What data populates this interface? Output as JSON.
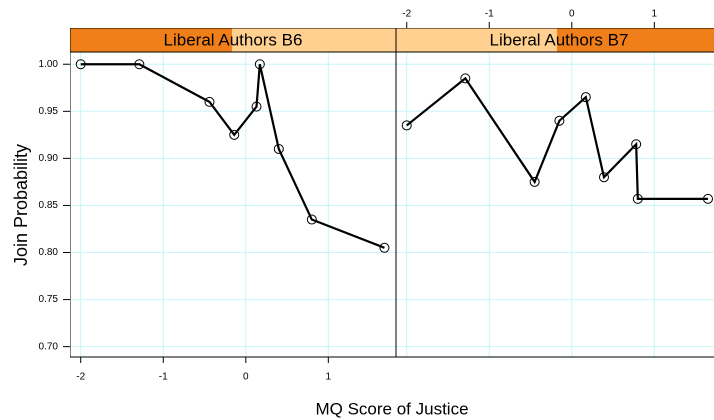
{
  "chart_data": {
    "type": "line",
    "xlabel": "MQ Score of Justice",
    "ylabel": "Join Probability",
    "xlim": [
      -2.13,
      1.82
    ],
    "ylim": [
      0.689,
      1.013
    ],
    "xticks": [
      -2,
      -1,
      0,
      1
    ],
    "yticks": [
      0.7,
      0.75,
      0.8,
      0.85,
      0.9,
      0.95,
      {
        "value": 1,
        "label": "1.00"
      }
    ],
    "grid": true,
    "color": "#000000",
    "panels": [
      {
        "title": "Liberal Authors B6",
        "x": [
          -2,
          -1.29,
          -0.44,
          -0.14,
          0.13,
          0.17,
          0.4,
          0.8,
          1.68
        ],
        "values": [
          1,
          1,
          0.96,
          0.925,
          0.955,
          1,
          0.91,
          0.835,
          0.805
        ]
      },
      {
        "title": "Liberal Authors B7",
        "x": [
          -2,
          -1.29,
          -0.45,
          -0.15,
          0.17,
          0.39,
          0.78,
          0.8,
          1.65
        ],
        "values": [
          0.935,
          0.985,
          0.875,
          0.94,
          0.965,
          0.88,
          0.915,
          0.857,
          0.857
        ]
      }
    ]
  }
}
